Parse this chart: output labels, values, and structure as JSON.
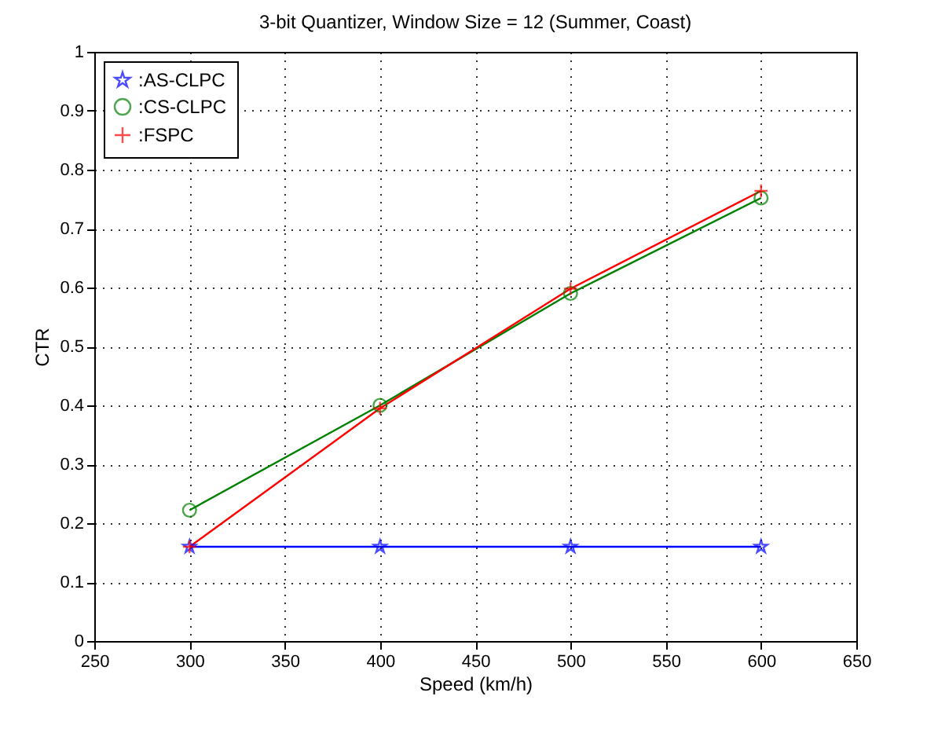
{
  "chart_data": {
    "type": "line",
    "title": "3-bit Quantizer, Window Size = 12 (Summer, Coast)",
    "xlabel": "Speed (km/h)",
    "ylabel": "CTR",
    "x": [
      300,
      400,
      500,
      600
    ],
    "series": [
      {
        "name": ":AS-CLPC",
        "color": "#0000ff",
        "marker": "star",
        "values": [
          0.16,
          0.16,
          0.16,
          0.16
        ]
      },
      {
        "name": ":CS-CLPC",
        "color": "#008000",
        "marker": "circle",
        "values": [
          0.222,
          0.4,
          0.59,
          0.752
        ]
      },
      {
        "name": ":FSPC",
        "color": "#ff0000",
        "marker": "cross",
        "values": [
          0.16,
          0.395,
          0.598,
          0.764
        ]
      }
    ],
    "xlim": [
      250,
      650
    ],
    "xticks": [
      250,
      300,
      350,
      400,
      450,
      500,
      550,
      600,
      650
    ],
    "ylim": [
      0,
      1
    ],
    "yticks": [
      0,
      0.1,
      0.2,
      0.3,
      0.4,
      0.5,
      0.6,
      0.7,
      0.8,
      0.9,
      1
    ],
    "grid": true,
    "legend": "top left",
    "line_style": "solid"
  }
}
